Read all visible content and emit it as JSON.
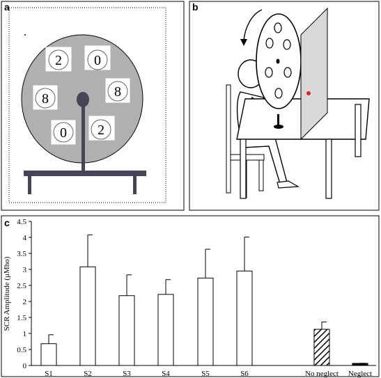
{
  "panels": {
    "a": {
      "label": "a",
      "digits": [
        "2",
        "0",
        "8",
        "8",
        "0",
        "2"
      ]
    },
    "b": {
      "label": "b"
    },
    "c": {
      "label": "c"
    }
  },
  "chart_data": {
    "type": "bar",
    "categories": [
      "S1",
      "S2",
      "S3",
      "S4",
      "S5",
      "S6",
      "No neglect",
      "Neglect"
    ],
    "values": [
      0.68,
      3.08,
      2.18,
      2.22,
      2.73,
      2.95,
      1.13,
      0.05
    ],
    "errors": [
      0.28,
      1.0,
      0.65,
      0.46,
      0.9,
      1.06,
      0.23,
      0.02
    ],
    "patterns": [
      "plain",
      "plain",
      "plain",
      "plain",
      "plain",
      "plain",
      "hatched",
      "solid"
    ],
    "ylabel": "SCR Amplitude (μMho)",
    "ylim": [
      0,
      4.5
    ],
    "yticks": [
      "0",
      "0.5",
      "1",
      "1.5",
      "2",
      "2.5",
      "3",
      "3.5",
      "4",
      "4.5"
    ],
    "grid": false
  },
  "colors": {
    "wheel_fill": "#b0b0b0",
    "frame_dark": "#474359",
    "marker_red": "#e02020",
    "screen_fill": "#d9d9d9"
  }
}
